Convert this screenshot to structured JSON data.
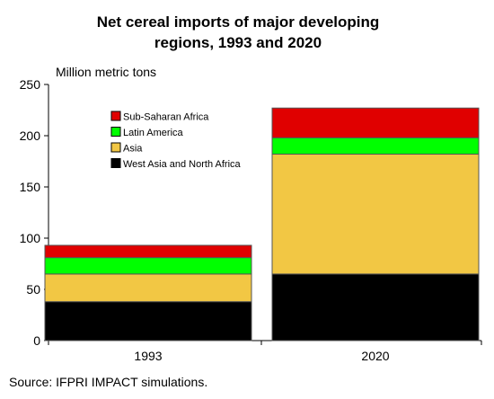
{
  "chart_data": {
    "type": "bar",
    "stacked": true,
    "title": [
      "Net cereal imports of major developing",
      "regions, 1993 and 2020"
    ],
    "ylabel": "Million metric tons",
    "xlabel": "",
    "ylim": [
      0,
      250
    ],
    "yticks": [
      0,
      50,
      100,
      150,
      200,
      250
    ],
    "categories": [
      "1993",
      "2020"
    ],
    "series": [
      {
        "name": "West Asia and North Africa",
        "color": "#000000",
        "values": [
          38,
          65
        ]
      },
      {
        "name": "Asia",
        "color": "#f2c744",
        "values": [
          27,
          117
        ]
      },
      {
        "name": "Latin America",
        "color": "#00ff00",
        "values": [
          16,
          16
        ]
      },
      {
        "name": "Sub-Saharan Africa",
        "color": "#e00000",
        "values": [
          12,
          29
        ]
      }
    ],
    "legend_order": [
      "Sub-Saharan Africa",
      "Latin America",
      "Asia",
      "West Asia and North Africa"
    ],
    "legend_position": "top-left",
    "grid": false,
    "source": "Source:  IFPRI IMPACT simulations."
  }
}
